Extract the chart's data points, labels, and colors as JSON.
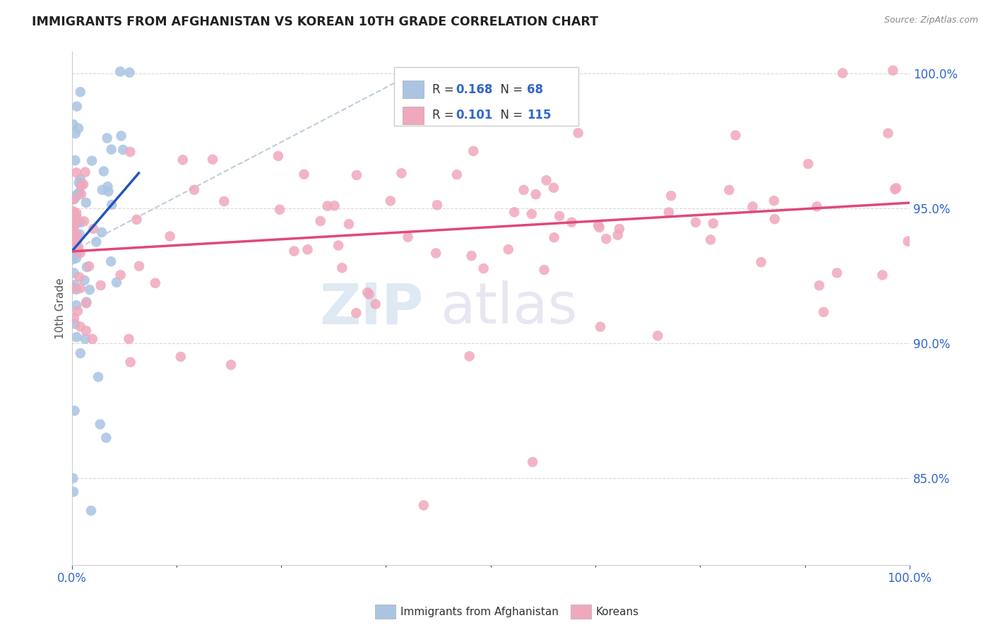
{
  "title": "IMMIGRANTS FROM AFGHANISTAN VS KOREAN 10TH GRADE CORRELATION CHART",
  "source": "Source: ZipAtlas.com",
  "ylabel": "10th Grade",
  "watermark_zip": "ZIP",
  "watermark_atlas": "atlas",
  "r_afghanistan": 0.168,
  "n_afghanistan": 68,
  "r_koreans": 0.101,
  "n_koreans": 115,
  "x_min": 0.0,
  "x_max": 1.0,
  "y_min": 0.818,
  "y_max": 1.008,
  "y_ticks": [
    0.85,
    0.9,
    0.95,
    1.0
  ],
  "y_tick_labels": [
    "85.0%",
    "90.0%",
    "95.0%",
    "100.0%"
  ],
  "color_afghanistan": "#aac4e2",
  "color_koreans": "#f0a8bc",
  "line_color_afghanistan": "#2255bb",
  "line_color_koreans": "#e04878",
  "dash_line_color": "#b8c8d8",
  "background_color": "#ffffff",
  "grid_color": "#d8d8d8",
  "title_color": "#222222",
  "tick_color": "#3366cc",
  "ylabel_color": "#555555",
  "source_color": "#888888"
}
